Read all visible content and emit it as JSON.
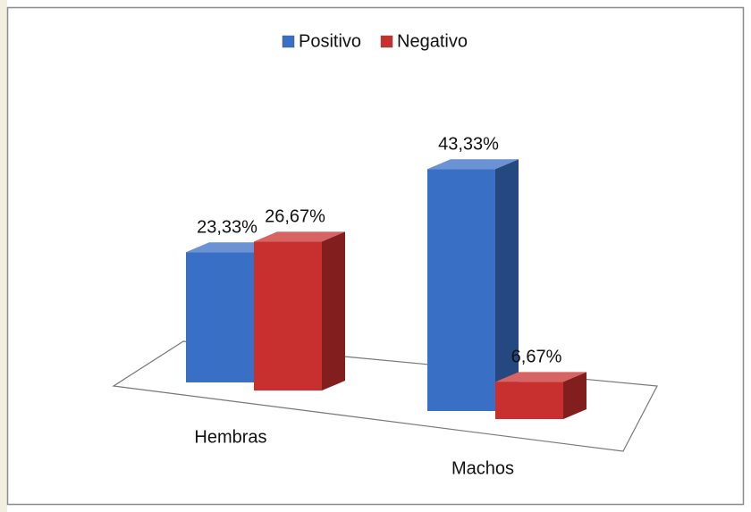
{
  "chart_data": {
    "type": "bar3d",
    "categories": [
      "Hembras",
      "Machos"
    ],
    "series": [
      {
        "name": "Positivo",
        "color": "#3a6fc6",
        "values": [
          23.33,
          43.33
        ],
        "value_labels": [
          "23,33%",
          "43,33%"
        ]
      },
      {
        "name": "Negativo",
        "color": "#c8302f",
        "values": [
          26.67,
          6.67
        ],
        "value_labels": [
          "26,67%",
          "6,67%"
        ]
      }
    ]
  }
}
